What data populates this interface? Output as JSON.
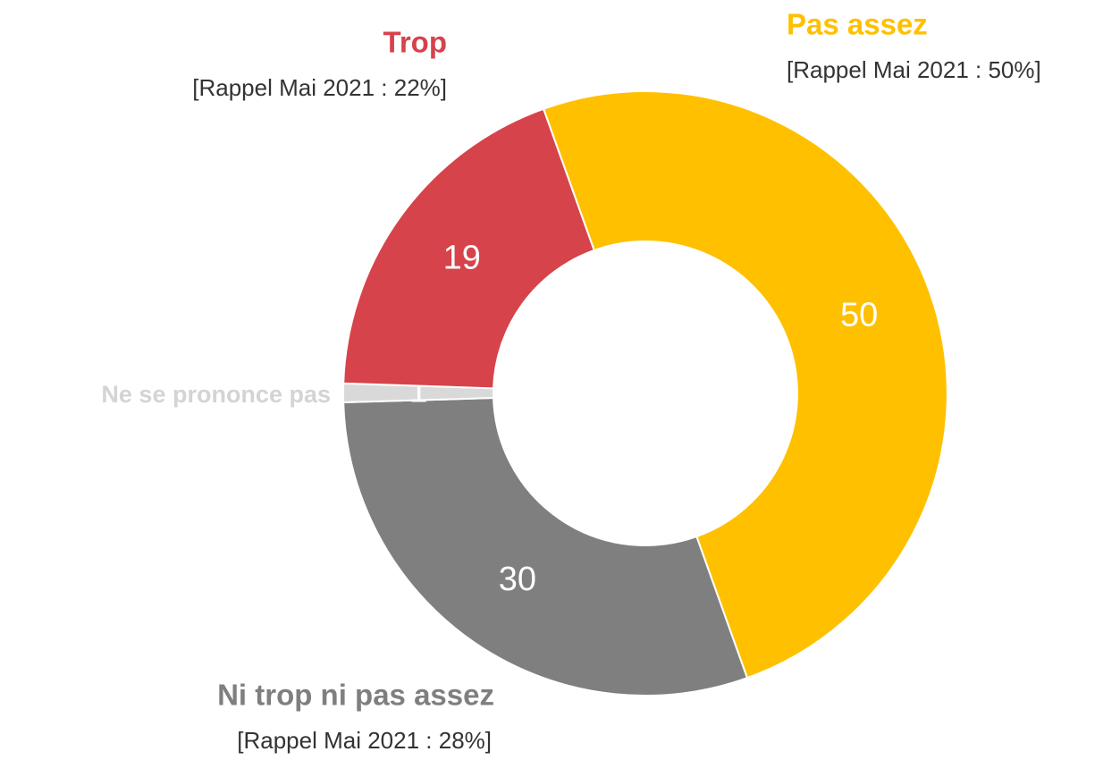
{
  "chart_data": {
    "type": "donut",
    "categories": [
      "Pas assez",
      "Ni trop ni pas assez",
      "Ne se prononce pas",
      "Trop"
    ],
    "values": [
      50,
      30,
      1,
      19
    ],
    "colors": [
      "#ffc000",
      "#7f7f7f",
      "#d9d9d9",
      "#d6434a"
    ],
    "label_colors": [
      "#ffc000",
      "#7f7f7f",
      "#d4d4d4",
      "#d6434a"
    ],
    "notes": [
      "[Rappel Mai 2021 : 50%]",
      "[Rappel Mai 2021 : 28%]",
      null,
      "[Rappel Mai 2021 : 22%]"
    ]
  }
}
